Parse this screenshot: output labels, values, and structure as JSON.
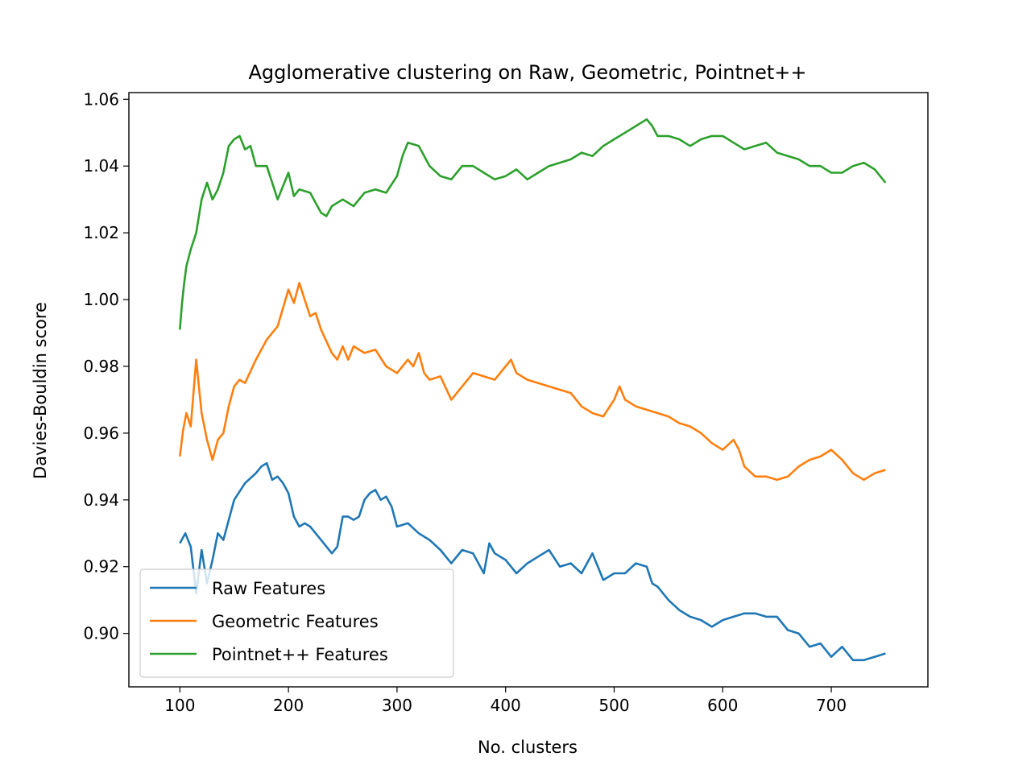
{
  "chart_data": {
    "type": "line",
    "title": "Agglomerative clustering on Raw, Geometric, Pointnet++",
    "xlabel": "No. clusters",
    "ylabel": "Davies-Bouldin score",
    "xlim": [
      53,
      789
    ],
    "ylim": [
      0.884,
      1.062
    ],
    "xticks": [
      100,
      200,
      300,
      400,
      500,
      600,
      700
    ],
    "yticks": [
      0.9,
      0.92,
      0.94,
      0.96,
      0.98,
      1.0,
      1.02,
      1.04,
      1.06
    ],
    "ytick_labels": [
      "0.90",
      "0.92",
      "0.94",
      "0.96",
      "0.98",
      "1.00",
      "1.02",
      "1.04",
      "1.06"
    ],
    "grid": false,
    "legend_position": "lower-left",
    "series": [
      {
        "name": "Raw Features",
        "color": "#1f77b4",
        "x": [
          100,
          105,
          110,
          115,
          120,
          125,
          130,
          135,
          140,
          150,
          160,
          170,
          175,
          180,
          185,
          190,
          195,
          200,
          205,
          210,
          215,
          220,
          230,
          240,
          245,
          250,
          255,
          260,
          265,
          270,
          275,
          280,
          285,
          290,
          295,
          300,
          310,
          320,
          330,
          340,
          350,
          360,
          370,
          380,
          385,
          390,
          400,
          410,
          420,
          430,
          440,
          450,
          460,
          470,
          480,
          490,
          500,
          510,
          520,
          530,
          535,
          540,
          550,
          560,
          570,
          580,
          590,
          600,
          610,
          620,
          630,
          640,
          650,
          660,
          670,
          680,
          690,
          700,
          710,
          720,
          725,
          730,
          740,
          750
        ],
        "y": [
          0.927,
          0.93,
          0.926,
          0.912,
          0.925,
          0.915,
          0.922,
          0.93,
          0.928,
          0.94,
          0.945,
          0.948,
          0.95,
          0.951,
          0.946,
          0.947,
          0.945,
          0.942,
          0.935,
          0.932,
          0.933,
          0.932,
          0.928,
          0.924,
          0.926,
          0.935,
          0.935,
          0.934,
          0.935,
          0.94,
          0.942,
          0.943,
          0.94,
          0.941,
          0.938,
          0.932,
          0.933,
          0.93,
          0.928,
          0.925,
          0.921,
          0.925,
          0.924,
          0.918,
          0.927,
          0.924,
          0.922,
          0.918,
          0.921,
          0.923,
          0.925,
          0.92,
          0.921,
          0.918,
          0.924,
          0.916,
          0.918,
          0.918,
          0.921,
          0.92,
          0.915,
          0.914,
          0.91,
          0.907,
          0.905,
          0.904,
          0.902,
          0.904,
          0.905,
          0.906,
          0.906,
          0.905,
          0.905,
          0.901,
          0.9,
          0.896,
          0.897,
          0.893,
          0.896,
          0.892,
          0.892,
          0.892,
          0.893,
          0.894
        ]
      },
      {
        "name": "Geometric Features",
        "color": "#ff7f0e",
        "x": [
          100,
          103,
          106,
          110,
          115,
          120,
          125,
          130,
          135,
          140,
          145,
          150,
          155,
          160,
          170,
          180,
          190,
          200,
          205,
          210,
          215,
          220,
          225,
          230,
          240,
          245,
          250,
          255,
          260,
          270,
          280,
          290,
          300,
          310,
          315,
          320,
          325,
          330,
          340,
          350,
          360,
          370,
          380,
          390,
          400,
          405,
          410,
          420,
          430,
          440,
          450,
          460,
          470,
          480,
          490,
          500,
          505,
          510,
          520,
          530,
          540,
          550,
          560,
          570,
          580,
          590,
          600,
          610,
          615,
          620,
          630,
          640,
          650,
          660,
          670,
          680,
          690,
          700,
          710,
          720,
          725,
          730,
          740,
          750
        ],
        "y": [
          0.953,
          0.961,
          0.966,
          0.962,
          0.982,
          0.966,
          0.958,
          0.952,
          0.958,
          0.96,
          0.968,
          0.974,
          0.976,
          0.975,
          0.982,
          0.988,
          0.992,
          1.003,
          0.999,
          1.005,
          1.0,
          0.995,
          0.996,
          0.991,
          0.984,
          0.982,
          0.986,
          0.982,
          0.986,
          0.984,
          0.985,
          0.98,
          0.978,
          0.982,
          0.98,
          0.984,
          0.978,
          0.976,
          0.977,
          0.97,
          0.974,
          0.978,
          0.977,
          0.976,
          0.98,
          0.982,
          0.978,
          0.976,
          0.975,
          0.974,
          0.973,
          0.972,
          0.968,
          0.966,
          0.965,
          0.97,
          0.974,
          0.97,
          0.968,
          0.967,
          0.966,
          0.965,
          0.963,
          0.962,
          0.96,
          0.957,
          0.955,
          0.958,
          0.955,
          0.95,
          0.947,
          0.947,
          0.946,
          0.947,
          0.95,
          0.952,
          0.953,
          0.955,
          0.952,
          0.948,
          0.947,
          0.946,
          0.948,
          0.949
        ]
      },
      {
        "name": "Pointnet++ Features",
        "color": "#2ca02c",
        "x": [
          100,
          102,
          104,
          106,
          110,
          115,
          120,
          125,
          130,
          135,
          140,
          145,
          150,
          155,
          160,
          165,
          170,
          180,
          190,
          200,
          205,
          210,
          220,
          230,
          235,
          240,
          245,
          250,
          260,
          270,
          280,
          290,
          300,
          305,
          310,
          320,
          330,
          340,
          350,
          360,
          370,
          380,
          390,
          400,
          410,
          420,
          430,
          440,
          450,
          460,
          470,
          480,
          490,
          500,
          510,
          520,
          525,
          530,
          535,
          540,
          550,
          560,
          570,
          580,
          590,
          600,
          610,
          620,
          630,
          640,
          650,
          660,
          670,
          680,
          690,
          700,
          710,
          720,
          730,
          740,
          750
        ],
        "y": [
          0.991,
          0.999,
          1.005,
          1.01,
          1.015,
          1.02,
          1.03,
          1.035,
          1.03,
          1.033,
          1.038,
          1.046,
          1.048,
          1.049,
          1.045,
          1.046,
          1.04,
          1.04,
          1.03,
          1.038,
          1.031,
          1.033,
          1.032,
          1.026,
          1.025,
          1.028,
          1.029,
          1.03,
          1.028,
          1.032,
          1.033,
          1.032,
          1.037,
          1.043,
          1.047,
          1.046,
          1.04,
          1.037,
          1.036,
          1.04,
          1.04,
          1.038,
          1.036,
          1.037,
          1.039,
          1.036,
          1.038,
          1.04,
          1.041,
          1.042,
          1.044,
          1.043,
          1.046,
          1.048,
          1.05,
          1.052,
          1.053,
          1.054,
          1.052,
          1.049,
          1.049,
          1.048,
          1.046,
          1.048,
          1.049,
          1.049,
          1.047,
          1.045,
          1.046,
          1.047,
          1.044,
          1.043,
          1.042,
          1.04,
          1.04,
          1.038,
          1.038,
          1.04,
          1.041,
          1.039,
          1.035
        ]
      }
    ]
  }
}
